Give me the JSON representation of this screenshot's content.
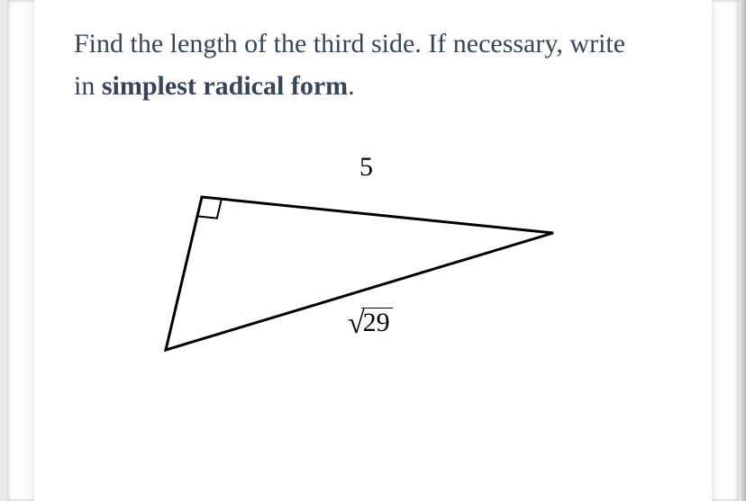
{
  "question": {
    "prefix": "Find the length of the third side. If necessary, write in ",
    "bold": "simplest radical form",
    "suffix": "."
  },
  "figure": {
    "type": "right-triangle",
    "vertices": {
      "A": [
        60,
        60
      ],
      "B": [
        450,
        100
      ],
      "C": [
        20,
        230
      ]
    },
    "right_angle_at": "A",
    "right_angle_marker_size": 22,
    "stroke_color": "#000000",
    "stroke_width": 3,
    "labels": {
      "leg_top": "5",
      "hypotenuse_radicand": "29"
    },
    "label_fontsize": 30,
    "label_color": "#000000"
  },
  "colors": {
    "page_bg": "#e8e8e8",
    "card_bg": "#ffffff",
    "text": "#37455a"
  }
}
